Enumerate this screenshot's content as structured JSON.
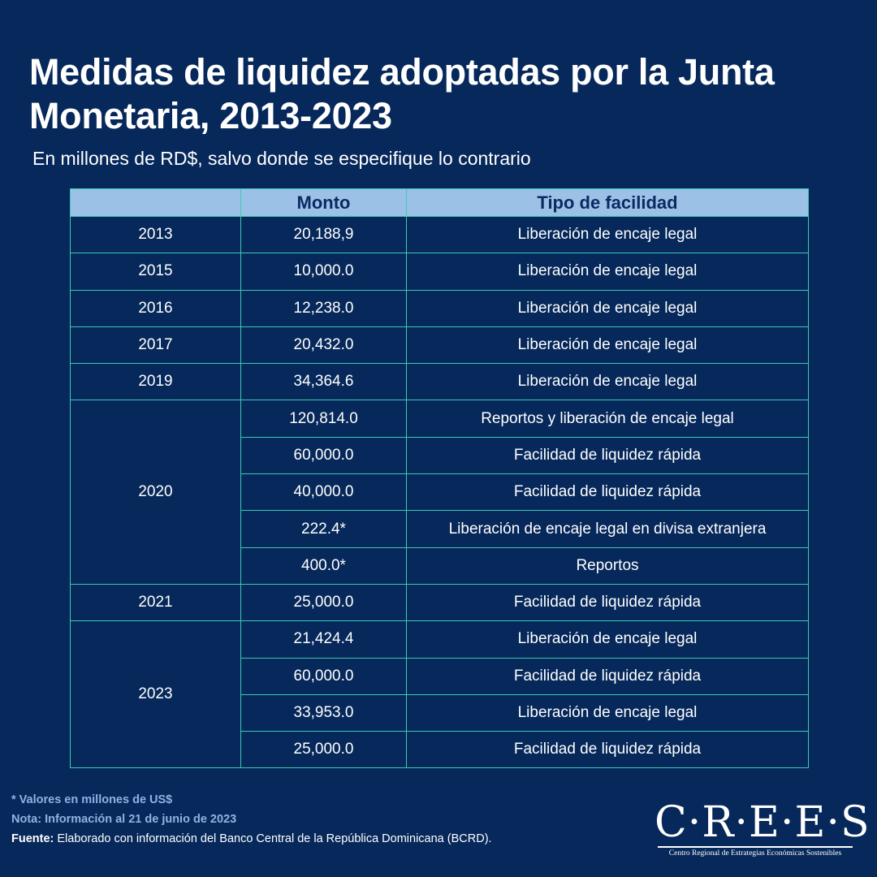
{
  "title": "Medidas de liquidez adoptadas por la Junta Monetaria, 2013-2023",
  "subtitle": "En millones de RD$, salvo donde se especifique lo contrario",
  "table": {
    "headers": [
      "",
      "Monto",
      "Tipo de facilidad"
    ],
    "groups": [
      {
        "year": "2013",
        "rows": [
          {
            "amount": "20,188,9",
            "type": "Liberación de encaje legal"
          }
        ]
      },
      {
        "year": "2015",
        "rows": [
          {
            "amount": "10,000.0",
            "type": "Liberación de encaje legal"
          }
        ]
      },
      {
        "year": "2016",
        "rows": [
          {
            "amount": "12,238.0",
            "type": "Liberación de encaje legal"
          }
        ]
      },
      {
        "year": "2017",
        "rows": [
          {
            "amount": "20,432.0",
            "type": "Liberación de encaje legal"
          }
        ]
      },
      {
        "year": "2019",
        "rows": [
          {
            "amount": "34,364.6",
            "type": "Liberación de encaje legal"
          }
        ]
      },
      {
        "year": "2020",
        "rows": [
          {
            "amount": "120,814.0",
            "type": "Reportos y liberación de encaje legal"
          },
          {
            "amount": "60,000.0",
            "type": "Facilidad de liquidez rápida"
          },
          {
            "amount": "40,000.0",
            "type": "Facilidad de liquidez rápida"
          },
          {
            "amount": "222.4*",
            "type": "Liberación de encaje legal en divisa extranjera",
            "usd": true
          },
          {
            "amount": "400.0*",
            "type": "Reportos",
            "usd": true
          }
        ]
      },
      {
        "year": "2021",
        "rows": [
          {
            "amount": "25,000.0",
            "type": "Facilidad de liquidez rápida"
          }
        ]
      },
      {
        "year": "2023",
        "rows": [
          {
            "amount": "21,424.4",
            "type": "Liberación de encaje legal"
          },
          {
            "amount": "60,000.0",
            "type": "Facilidad de liquidez rápida"
          },
          {
            "amount": "33,953.0",
            "type": "Liberación de encaje legal"
          },
          {
            "amount": "25,000.0",
            "type": "Facilidad de liquidez rápida"
          }
        ]
      }
    ]
  },
  "footnotes": {
    "usd_note": "* Valores en millones de US$",
    "nota": "Nota: Información al 21 de junio de 2023",
    "source_label": "Fuente:",
    "source_text": " Elaborado con información del Banco Central de la República Dominicana (BCRD)."
  },
  "logo": {
    "name": "C·R·E·E·S",
    "subtitle": "Centro Regional de Estrategias Económicas Sostenibles"
  },
  "colors": {
    "background": "#06285a",
    "header_fill": "#9bc2e6",
    "header_text": "#0b2a63",
    "border": "#3dc9b5",
    "note": "#8fb2e3"
  }
}
